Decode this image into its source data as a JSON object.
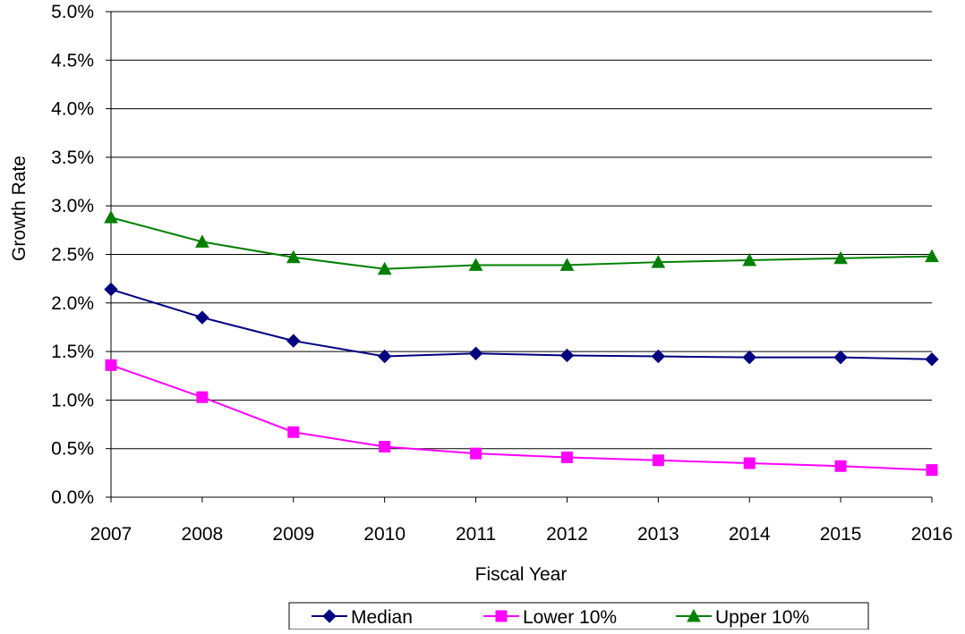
{
  "chart_data": {
    "type": "line",
    "title": "",
    "xlabel": "Fiscal Year",
    "ylabel": "Growth Rate",
    "x": [
      2007,
      2008,
      2009,
      2010,
      2011,
      2012,
      2013,
      2014,
      2015,
      2016
    ],
    "x_tick_labels": [
      "2007",
      "2008",
      "2009",
      "2010",
      "2011",
      "2012",
      "2013",
      "2014",
      "2015",
      "2016"
    ],
    "ylim": [
      0,
      5.0
    ],
    "y_ticks": [
      0,
      0.5,
      1.0,
      1.5,
      2.0,
      2.5,
      3.0,
      3.5,
      4.0,
      4.5,
      5.0
    ],
    "y_tick_labels": [
      "0.0%",
      "0.5%",
      "1.0%",
      "1.5%",
      "2.0%",
      "2.5%",
      "3.0%",
      "3.5%",
      "4.0%",
      "4.5%",
      "5.0%"
    ],
    "y_unit": "%",
    "grid": "horizontal",
    "legend_position": "bottom",
    "series": [
      {
        "name": "Median",
        "color": "#000080",
        "marker": "diamond",
        "values": [
          2.14,
          1.85,
          1.61,
          1.45,
          1.48,
          1.46,
          1.45,
          1.44,
          1.44,
          1.42
        ]
      },
      {
        "name": "Lower 10%",
        "color": "#FF00FF",
        "marker": "square",
        "values": [
          1.36,
          1.03,
          0.67,
          0.52,
          0.45,
          0.41,
          0.38,
          0.35,
          0.32,
          0.28
        ]
      },
      {
        "name": "Upper 10%",
        "color": "#008000",
        "marker": "triangle",
        "values": [
          2.88,
          2.63,
          2.47,
          2.35,
          2.39,
          2.39,
          2.42,
          2.44,
          2.46,
          2.48
        ]
      }
    ]
  }
}
